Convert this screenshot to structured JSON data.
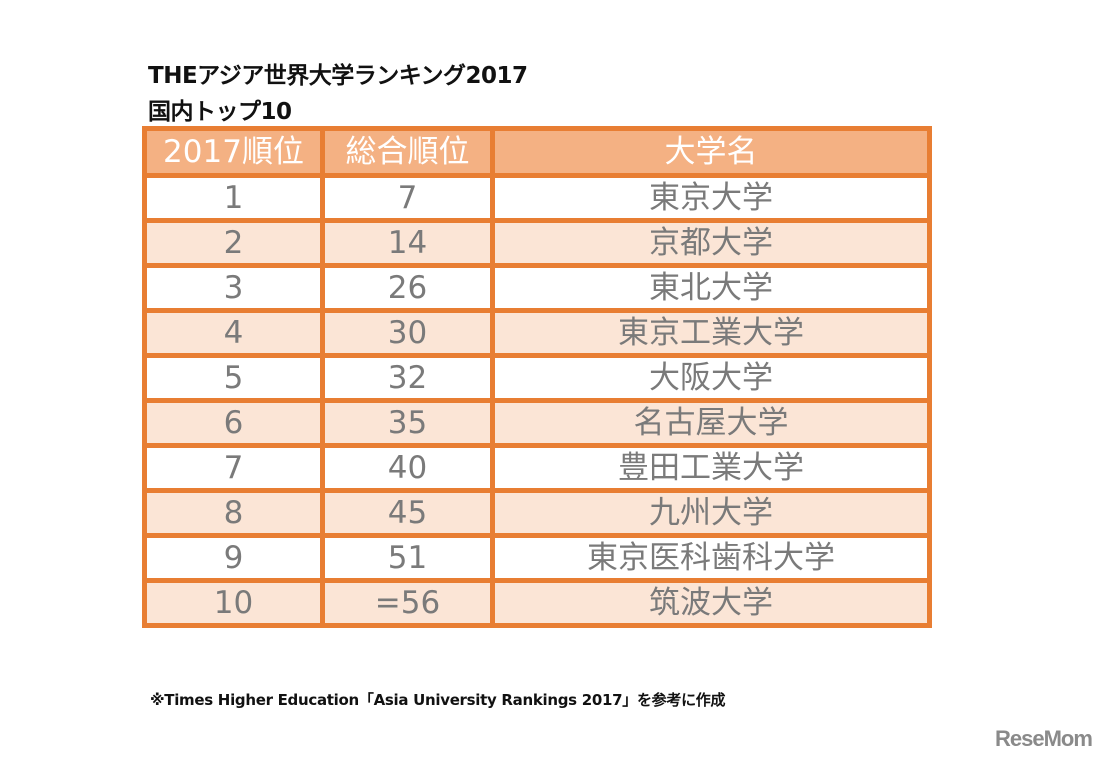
{
  "title": {
    "line1": "THEアジア世界大学ランキング2017",
    "line2": "国内トップ10"
  },
  "table": {
    "headers": [
      "2017順位",
      "総合順位",
      "大学名"
    ],
    "rows": [
      [
        "1",
        "7",
        "東京大学"
      ],
      [
        "2",
        "14",
        "京都大学"
      ],
      [
        "3",
        "26",
        "東北大学"
      ],
      [
        "4",
        "30",
        "東京工業大学"
      ],
      [
        "5",
        "32",
        "大阪大学"
      ],
      [
        "6",
        "35",
        "名古屋大学"
      ],
      [
        "7",
        "40",
        "豊田工業大学"
      ],
      [
        "8",
        "45",
        "九州大学"
      ],
      [
        "9",
        "51",
        "東京医科歯科大学"
      ],
      [
        "10",
        "=56",
        "筑波大学"
      ]
    ]
  },
  "note": "※Times Higher Education「Asia University Rankings 2017」を参考に作成",
  "logo": "ReseMom",
  "colors": {
    "border": "#E87E33",
    "header_fill": "#F4B183",
    "stripe_fill": "#FBE5D6",
    "cell_text": "#7a7a7a"
  }
}
